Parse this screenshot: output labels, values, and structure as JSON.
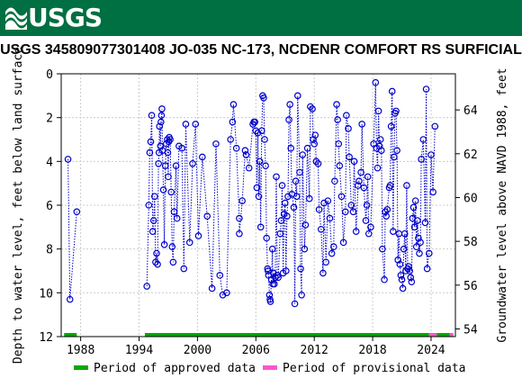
{
  "banner": {
    "logo_text": "USGS"
  },
  "chart_data": {
    "type": "scatter",
    "title": "USGS 345809077301408 JO-035 NC-173, NCDENR COMFORT RS SURFICIAL",
    "ylabel_left": "Depth to water level, feet below land surface",
    "ylabel_right": "Groundwater level above NAVD 1988, feet",
    "xlim": [
      1986,
      2026.5
    ],
    "ylim_left": [
      12,
      0
    ],
    "x_ticks": [
      1988,
      1994,
      2000,
      2006,
      2012,
      2018,
      2024
    ],
    "y_ticks_left": [
      0,
      2,
      4,
      6,
      8,
      10,
      12
    ],
    "y_ticks_right": [
      54,
      56,
      58,
      60,
      62,
      64
    ],
    "right_axis_offset": 65.65,
    "grid": true,
    "colors": {
      "points": "#0000cc",
      "approved": "#00aa00",
      "provisional": "#ff55cc",
      "banner": "#006f41"
    },
    "legend": {
      "position": "bottom",
      "items": [
        {
          "label": "Period of approved data",
          "color": "#00aa00"
        },
        {
          "label": "Period of provisional data",
          "color": "#ff55cc"
        }
      ]
    },
    "periods": [
      {
        "type": "approved",
        "start": 1986.3,
        "end": 1987.6
      },
      {
        "type": "approved",
        "start": 1994.6,
        "end": 2023.8
      },
      {
        "type": "provisional",
        "start": 2023.8,
        "end": 2024.6
      },
      {
        "type": "approved",
        "start": 2024.6,
        "end": 2025.9
      },
      {
        "type": "provisional",
        "start": 2025.9,
        "end": 2026.3
      }
    ],
    "series": [
      {
        "values": [
          [
            1986.7,
            3.9
          ],
          [
            1986.9,
            10.3
          ],
          [
            1987.6,
            6.3
          ],
          [
            1994.8,
            9.7
          ],
          [
            1995.0,
            6.0
          ],
          [
            1995.1,
            3.6
          ],
          [
            1995.2,
            3.1
          ],
          [
            1995.3,
            1.9
          ],
          [
            1995.4,
            7.2
          ],
          [
            1995.5,
            6.7
          ],
          [
            1995.6,
            5.6
          ],
          [
            1995.7,
            8.6
          ],
          [
            1995.8,
            8.2
          ],
          [
            1995.9,
            8.7
          ],
          [
            1996.0,
            4.1
          ],
          [
            1996.05,
            3.6
          ],
          [
            1996.1,
            2.4
          ],
          [
            1996.2,
            3.3
          ],
          [
            1996.25,
            2.2
          ],
          [
            1996.3,
            1.9
          ],
          [
            1996.35,
            1.6
          ],
          [
            1996.4,
            3.5
          ],
          [
            1996.5,
            5.3
          ],
          [
            1996.6,
            7.8
          ],
          [
            1996.7,
            4.2
          ],
          [
            1996.8,
            3.2
          ],
          [
            1996.9,
            3.0
          ],
          [
            1996.95,
            3.6
          ],
          [
            1997.0,
            4.7
          ],
          [
            1997.05,
            3.1
          ],
          [
            1997.1,
            2.9
          ],
          [
            1997.2,
            3.0
          ],
          [
            1997.3,
            5.4
          ],
          [
            1997.4,
            7.9
          ],
          [
            1997.5,
            8.6
          ],
          [
            1997.6,
            6.3
          ],
          [
            1997.8,
            4.2
          ],
          [
            1997.9,
            6.6
          ],
          [
            1998.1,
            3.3
          ],
          [
            1998.4,
            3.4
          ],
          [
            1998.6,
            8.9
          ],
          [
            1998.8,
            2.3
          ],
          [
            1999.2,
            7.7
          ],
          [
            1999.5,
            4.1
          ],
          [
            1999.8,
            2.3
          ],
          [
            2000.1,
            7.4
          ],
          [
            2000.5,
            3.8
          ],
          [
            2001.0,
            6.5
          ],
          [
            2001.5,
            9.8
          ],
          [
            2001.9,
            3.2
          ],
          [
            2002.3,
            9.2
          ],
          [
            2002.6,
            10.1
          ],
          [
            2003.0,
            10.0
          ],
          [
            2003.4,
            3.0
          ],
          [
            2003.6,
            2.2
          ],
          [
            2003.7,
            1.4
          ],
          [
            2004.0,
            3.4
          ],
          [
            2004.3,
            6.6
          ],
          [
            2004.3,
            7.3
          ],
          [
            2004.6,
            5.8
          ],
          [
            2004.9,
            3.5
          ],
          [
            2005.0,
            3.7
          ],
          [
            2005.3,
            4.3
          ],
          [
            2005.7,
            2.3
          ],
          [
            2005.8,
            2.2
          ],
          [
            2005.9,
            2.2
          ],
          [
            2006.0,
            2.6
          ],
          [
            2006.1,
            5.2
          ],
          [
            2006.2,
            2.7
          ],
          [
            2006.3,
            5.6
          ],
          [
            2006.4,
            4.0
          ],
          [
            2006.5,
            7.0
          ],
          [
            2006.6,
            2.6
          ],
          [
            2006.7,
            1.0
          ],
          [
            2006.8,
            1.1
          ],
          [
            2006.9,
            3.0
          ],
          [
            2007.0,
            4.2
          ],
          [
            2007.1,
            7.5
          ],
          [
            2007.2,
            8.9
          ],
          [
            2007.25,
            9.0
          ],
          [
            2007.3,
            9.2
          ],
          [
            2007.4,
            10.1
          ],
          [
            2007.45,
            10.3
          ],
          [
            2007.5,
            10.4
          ],
          [
            2007.6,
            9.4
          ],
          [
            2007.7,
            8.0
          ],
          [
            2007.75,
            9.6
          ],
          [
            2007.8,
            9.1
          ],
          [
            2007.9,
            9.6
          ],
          [
            2008.0,
            9.3
          ],
          [
            2008.1,
            4.7
          ],
          [
            2008.2,
            9.2
          ],
          [
            2008.3,
            9.3
          ],
          [
            2008.5,
            7.3
          ],
          [
            2008.6,
            6.7
          ],
          [
            2008.7,
            5.1
          ],
          [
            2008.8,
            9.1
          ],
          [
            2008.9,
            6.4
          ],
          [
            2009.0,
            5.9
          ],
          [
            2009.1,
            9.0
          ],
          [
            2009.2,
            6.5
          ],
          [
            2009.3,
            5.6
          ],
          [
            2009.4,
            2.1
          ],
          [
            2009.5,
            1.4
          ],
          [
            2009.6,
            3.4
          ],
          [
            2009.7,
            5.5
          ],
          [
            2009.9,
            6.1
          ],
          [
            2010.0,
            10.5
          ],
          [
            2010.1,
            4.9
          ],
          [
            2010.2,
            5.6
          ],
          [
            2010.3,
            1.0
          ],
          [
            2010.5,
            4.5
          ],
          [
            2010.6,
            8.9
          ],
          [
            2010.7,
            10.1
          ],
          [
            2010.8,
            3.7
          ],
          [
            2011.0,
            8.0
          ],
          [
            2011.1,
            6.9
          ],
          [
            2011.3,
            3.4
          ],
          [
            2011.5,
            5.7
          ],
          [
            2011.6,
            1.5
          ],
          [
            2011.8,
            1.6
          ],
          [
            2011.9,
            3.0
          ],
          [
            2012.0,
            3.2
          ],
          [
            2012.1,
            2.8
          ],
          [
            2012.2,
            4.0
          ],
          [
            2012.4,
            4.1
          ],
          [
            2012.5,
            6.2
          ],
          [
            2012.7,
            7.1
          ],
          [
            2012.9,
            9.1
          ],
          [
            2013.0,
            5.9
          ],
          [
            2013.2,
            8.6
          ],
          [
            2013.4,
            5.8
          ],
          [
            2013.6,
            6.6
          ],
          [
            2013.8,
            8.2
          ],
          [
            2014.0,
            7.9
          ],
          [
            2014.1,
            4.9
          ],
          [
            2014.3,
            1.4
          ],
          [
            2014.4,
            2.1
          ],
          [
            2014.5,
            3.2
          ],
          [
            2014.6,
            4.2
          ],
          [
            2014.8,
            5.6
          ],
          [
            2015.0,
            7.7
          ],
          [
            2015.2,
            6.3
          ],
          [
            2015.3,
            1.9
          ],
          [
            2015.5,
            2.5
          ],
          [
            2015.6,
            3.8
          ],
          [
            2015.8,
            6.0
          ],
          [
            2016.0,
            6.3
          ],
          [
            2016.1,
            4.0
          ],
          [
            2016.3,
            7.2
          ],
          [
            2016.5,
            5.1
          ],
          [
            2016.6,
            4.9
          ],
          [
            2016.8,
            4.5
          ],
          [
            2016.9,
            2.3
          ],
          [
            2017.1,
            5.2
          ],
          [
            2017.3,
            6.7
          ],
          [
            2017.4,
            6.0
          ],
          [
            2017.5,
            4.7
          ],
          [
            2017.6,
            7.3
          ],
          [
            2017.8,
            7.0
          ],
          [
            2018.1,
            3.2
          ],
          [
            2018.3,
            0.4
          ],
          [
            2018.4,
            3.4
          ],
          [
            2018.5,
            4.3
          ],
          [
            2018.6,
            1.7
          ],
          [
            2018.7,
            3.3
          ],
          [
            2018.8,
            3.0
          ],
          [
            2018.9,
            3.5
          ],
          [
            2019.0,
            8.0
          ],
          [
            2019.2,
            9.4
          ],
          [
            2019.3,
            6.3
          ],
          [
            2019.4,
            6.5
          ],
          [
            2019.5,
            6.2
          ],
          [
            2019.7,
            5.2
          ],
          [
            2019.8,
            5.1
          ],
          [
            2019.9,
            2.4
          ],
          [
            2020.0,
            0.8
          ],
          [
            2020.1,
            7.2
          ],
          [
            2020.2,
            3.8
          ],
          [
            2020.3,
            1.8
          ],
          [
            2020.4,
            1.7
          ],
          [
            2020.5,
            3.5
          ],
          [
            2020.6,
            8.5
          ],
          [
            2020.7,
            7.3
          ],
          [
            2020.8,
            8.7
          ],
          [
            2020.9,
            9.2
          ],
          [
            2021.0,
            9.4
          ],
          [
            2021.1,
            9.8
          ],
          [
            2021.2,
            8.0
          ],
          [
            2021.3,
            7.3
          ],
          [
            2021.4,
            9.0
          ],
          [
            2021.5,
            5.1
          ],
          [
            2021.6,
            8.9
          ],
          [
            2021.7,
            8.8
          ],
          [
            2021.8,
            9.0
          ],
          [
            2021.9,
            9.3
          ],
          [
            2022.0,
            9.5
          ],
          [
            2022.1,
            6.6
          ],
          [
            2022.2,
            6.1
          ],
          [
            2022.3,
            7.0
          ],
          [
            2022.4,
            5.8
          ],
          [
            2022.5,
            7.9
          ],
          [
            2022.6,
            6.7
          ],
          [
            2022.7,
            7.5
          ],
          [
            2022.8,
            8.2
          ],
          [
            2022.9,
            7.7
          ],
          [
            2023.0,
            3.9
          ],
          [
            2023.2,
            3.0
          ],
          [
            2023.4,
            6.8
          ],
          [
            2023.5,
            0.7
          ],
          [
            2023.6,
            8.9
          ],
          [
            2023.8,
            8.2
          ],
          [
            2024.0,
            3.7
          ],
          [
            2024.2,
            5.4
          ],
          [
            2024.4,
            2.4
          ]
        ]
      }
    ]
  }
}
